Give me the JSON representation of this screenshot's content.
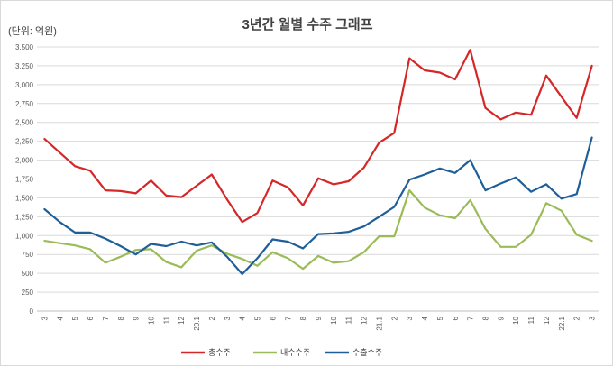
{
  "chart_data": {
    "type": "line",
    "title": "3년간 월별 수주 그래프",
    "unit_label": "(단위: 억원)",
    "ylim": [
      0,
      3500
    ],
    "y_ticks": [
      "0",
      "250",
      "500",
      "750",
      "1,000",
      "1,250",
      "1,500",
      "1,750",
      "2,000",
      "2,250",
      "2,500",
      "2,750",
      "3,000",
      "3,250",
      "3,500"
    ],
    "grid": true,
    "legend_position": "bottom",
    "categories": [
      "3",
      "4",
      "5",
      "6",
      "7",
      "8",
      "9",
      "10",
      "11",
      "12",
      "20.1",
      "2",
      "3",
      "4",
      "5",
      "6",
      "7",
      "8",
      "9",
      "10",
      "11",
      "12",
      "21.1",
      "2",
      "3",
      "4",
      "5",
      "6",
      "7",
      "8",
      "9",
      "10",
      "11",
      "12",
      "22.1",
      "2",
      "3"
    ],
    "series": [
      {
        "name": "총수주",
        "color": "#d62728",
        "values": [
          2280,
          2100,
          1920,
          1860,
          1600,
          1590,
          1560,
          1730,
          1530,
          1510,
          1660,
          1810,
          1480,
          1180,
          1300,
          1730,
          1640,
          1400,
          1760,
          1680,
          1720,
          1900,
          2230,
          2360,
          3350,
          3190,
          3160,
          3070,
          3460,
          2690,
          2540,
          2630,
          2600,
          3120,
          2840,
          2560,
          3250
        ]
      },
      {
        "name": "내수수주",
        "color": "#9bbb59",
        "values": [
          930,
          900,
          870,
          820,
          640,
          720,
          810,
          820,
          650,
          580,
          800,
          870,
          760,
          690,
          600,
          780,
          700,
          560,
          730,
          640,
          660,
          780,
          990,
          990,
          1600,
          1370,
          1270,
          1230,
          1470,
          1090,
          850,
          850,
          1010,
          1430,
          1330,
          1010,
          930
        ]
      },
      {
        "name": "수출수주",
        "color": "#1f5f99",
        "values": [
          1350,
          1180,
          1040,
          1040,
          960,
          860,
          750,
          890,
          860,
          920,
          870,
          910,
          720,
          490,
          700,
          950,
          920,
          830,
          1020,
          1030,
          1050,
          1120,
          1250,
          1380,
          1740,
          1810,
          1890,
          1830,
          2000,
          1600,
          1690,
          1770,
          1580,
          1680,
          1490,
          1550,
          2300
        ]
      }
    ]
  }
}
